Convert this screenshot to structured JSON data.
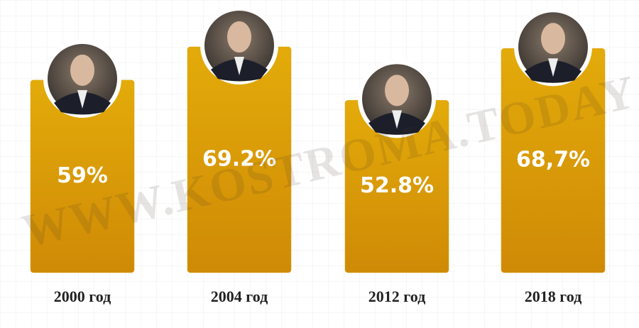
{
  "chart_data": {
    "type": "bar",
    "categories": [
      "2000 год",
      "2004 год",
      "2012 год",
      "2018 год"
    ],
    "values": [
      59,
      69.2,
      52.8,
      68.7
    ],
    "value_labels": [
      "59%",
      "69.2%",
      "52.8%",
      "68,7%"
    ],
    "color": "#dba00c",
    "watermark": "WWW.KOSTROMA.TODAY"
  }
}
